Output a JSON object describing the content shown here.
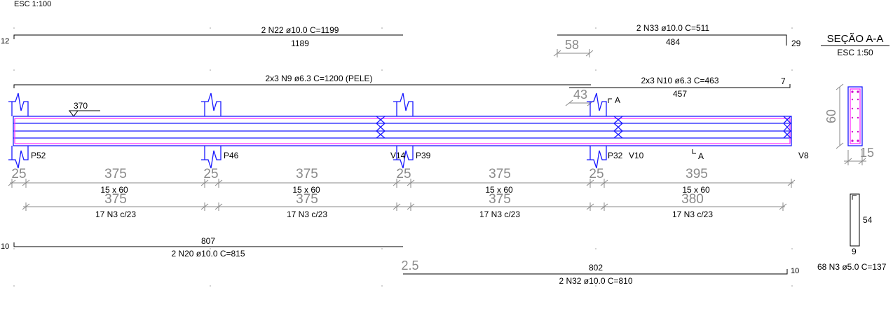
{
  "scales": {
    "main": "ESC 1:100",
    "section": "ESC 1:50"
  },
  "top_bar_left": {
    "label": "2 N22 ø10.0 C=1199",
    "length": "1189",
    "left_hook": "12"
  },
  "top_bar_right": {
    "label": "2 N33 ø10.0 C=511",
    "length": "484",
    "right_hook": "29",
    "overlap": "58"
  },
  "skin_bar_left": {
    "label": "2x3 N9 ø6.3 C=1200 (PELE)"
  },
  "skin_bar_right": {
    "label": "2x3 N10 ø6.3 C=463",
    "length": "457",
    "right_hook": "7",
    "overlap": "43"
  },
  "level_mark": "370",
  "supports": {
    "p52": "P52",
    "p46": "P46",
    "p39": "P39",
    "p32": "P32",
    "v14": "V14",
    "v10": "V10",
    "v8": "V8"
  },
  "section_cut": {
    "top": "A",
    "bottom": "A"
  },
  "spans": [
    {
      "support": "25",
      "span": "375",
      "section": "15 x 60",
      "stirrup_span": "375",
      "stirrups": "17 N3 c/23"
    },
    {
      "support": "25",
      "span": "375",
      "section": "15 x 60",
      "stirrup_span": "375",
      "stirrups": "17 N3 c/23"
    },
    {
      "support": "25",
      "span": "375",
      "section": "15 x 60",
      "stirrup_span": "375",
      "stirrups": "17 N3 c/23"
    },
    {
      "support": "25",
      "span": "395",
      "section": "15 x 60",
      "stirrup_span": "380",
      "stirrups": "17 N3 c/23"
    }
  ],
  "bottom_bar_left": {
    "label": "2 N20 ø10.0 C=815",
    "length": "807",
    "left_hook": "10"
  },
  "bottom_bar_right": {
    "label": "2 N32 ø10.0 C=810",
    "length": "802",
    "right_hook": "10",
    "offset": "2.5"
  },
  "section": {
    "title": "SEÇÃO A-A",
    "height": "60",
    "width": "15"
  },
  "stirrup": {
    "height": "54",
    "width": "9",
    "label": "68 N3 ø5.0 C=137"
  },
  "colors": {
    "concrete": "#1a1aff",
    "rebar": "#ff33ff",
    "dimension": "#8a8a8a",
    "text": "#000000"
  }
}
